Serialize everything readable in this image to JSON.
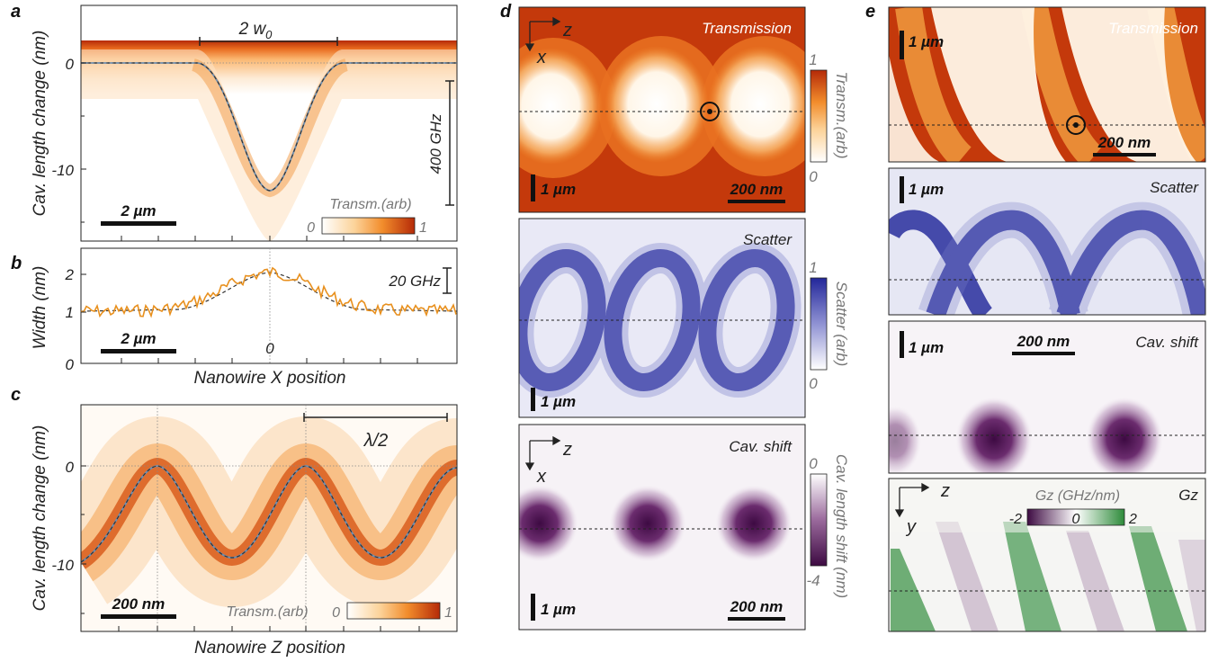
{
  "panels": {
    "a": {
      "letter": "a",
      "ylabel": "Cav. length change (nm)",
      "yticks": [
        "0",
        "-10"
      ],
      "top_label": "2 w",
      "top_label_sub": "0",
      "freq_label": "400 GHz",
      "scale": "2 µm",
      "cbar_title": "Transm.(arb)",
      "cbar_min": "0",
      "cbar_max": "1"
    },
    "b": {
      "letter": "b",
      "ylabel": "Width (nm)",
      "yticks": [
        "2",
        "1",
        "0"
      ],
      "freq_label": "20 GHz",
      "scale": "2 µm",
      "x_zero": "0",
      "xlabel": "Nanowire X position"
    },
    "c": {
      "letter": "c",
      "ylabel": "Cav. length change (nm)",
      "yticks": [
        "0",
        "-10"
      ],
      "top_label": "λ/2",
      "scale": "200 nm",
      "cbar_title": "Transm.(arb)",
      "cbar_min": "0",
      "cbar_max": "1",
      "xlabel": "Nanowire Z position"
    },
    "d": {
      "letter": "d",
      "axis_z": "z",
      "axis_x": "x",
      "map1_title": "Transmission",
      "map1_scale_v": "1 µm",
      "map1_scale_h": "200 nm",
      "cbar1_label": "Transm.(arb)",
      "cbar1_max": "1",
      "cbar1_min": "0",
      "map2_title": "Scatter",
      "map2_scale_v": "1 µm",
      "cbar2_label": "Scatter (arb)",
      "cbar2_max": "1",
      "cbar2_min": "0",
      "map3_title": "Cav. shift",
      "map3_scale_v": "1 µm",
      "map3_scale_h": "200 nm",
      "cbar3_label": "Cav. length shift (nm)",
      "cbar3_max": "0",
      "cbar3_min": "-4"
    },
    "e": {
      "letter": "e",
      "map1_title": "Transmission",
      "map1_scale_v": "1 µm",
      "map1_scale_h": "200 nm",
      "map2_title": "Scatter",
      "map2_scale_v": "1 µm",
      "map3_title": "Cav. shift",
      "map3_scale_v": "1 µm",
      "map3_scale_h": "200 nm",
      "map4_title": "Gz",
      "map4_axis_z": "z",
      "map4_axis_y": "y",
      "gz_cbar_title": "Gz (GHz/nm)",
      "gz_cbar_min": "-2",
      "gz_cbar_mid": "0",
      "gz_cbar_max": "2"
    }
  },
  "colors": {
    "transmission_dark": "#b52a08",
    "transmission_mid": "#f28d2c",
    "scatter_dark": "#23279a",
    "cavshift_dark": "#4a0f4e",
    "gz_green": "#2e8b3a",
    "fit_line": "#6b8db0",
    "width_trace": "#e8901e"
  }
}
